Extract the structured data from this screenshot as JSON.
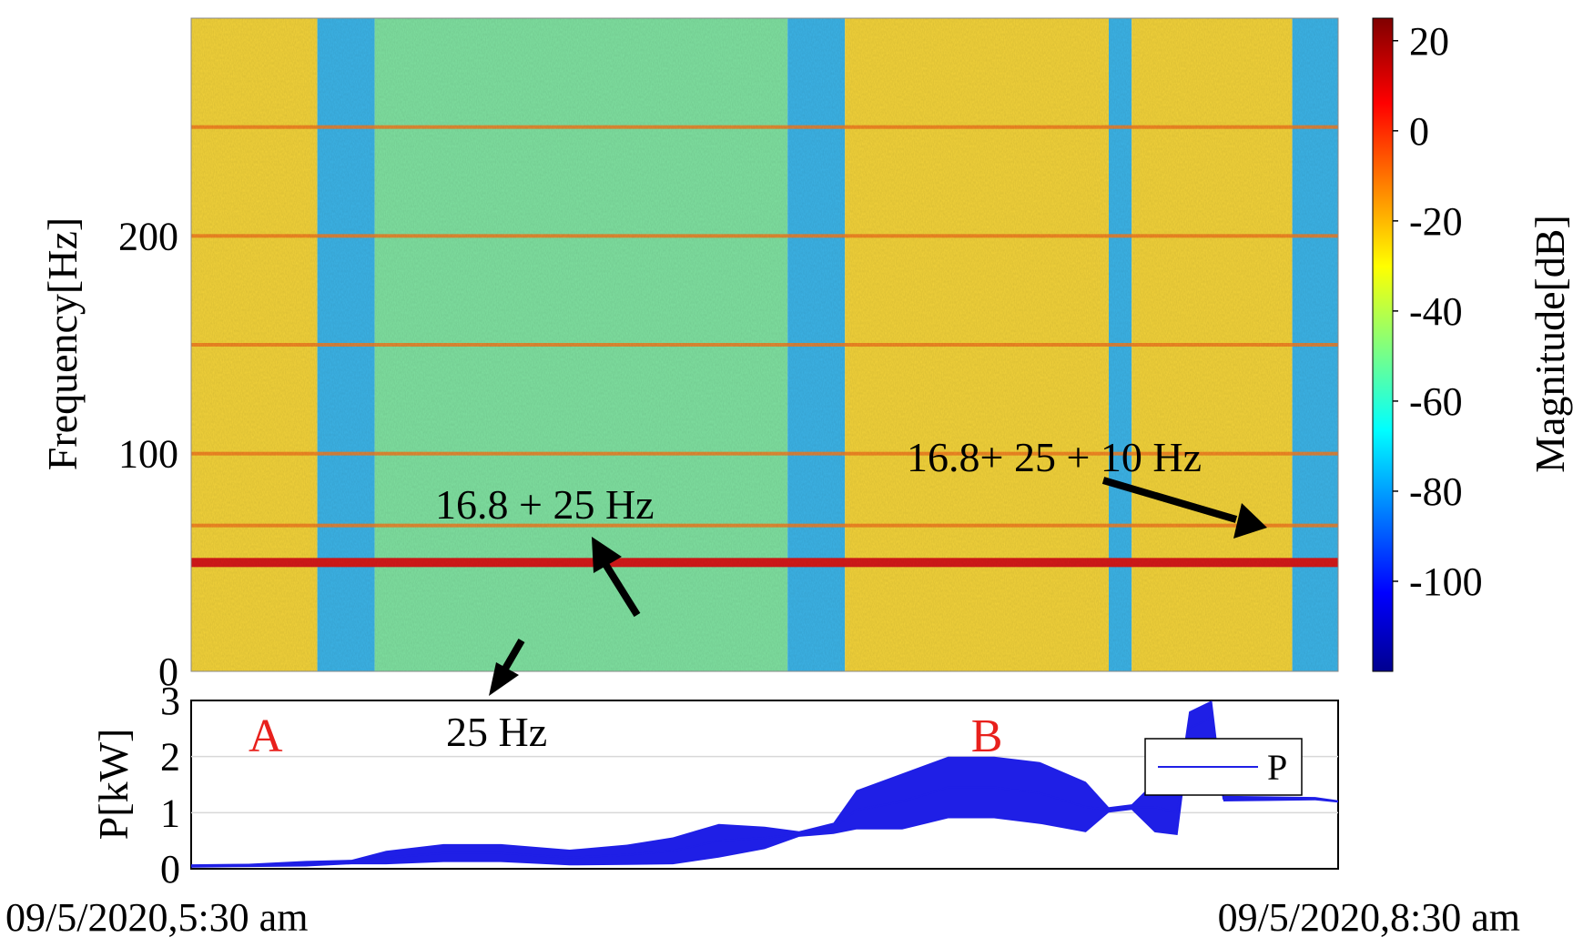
{
  "chart_data": [
    {
      "type": "heatmap",
      "title": "",
      "xlabel": "",
      "ylabel": "Frequency[Hz]",
      "ylim": [
        0,
        300
      ],
      "yticks": [
        0,
        100,
        200
      ],
      "ytick_labels": [
        "0",
        "100",
        "200"
      ],
      "colorbar": {
        "label": "Magnitude[dB]",
        "range": [
          -120,
          25
        ],
        "ticks": [
          20,
          0,
          -20,
          -40,
          -60,
          -80,
          -100
        ],
        "tick_labels": [
          "20",
          "0",
          "-20",
          "-40",
          "-60",
          "-80",
          "-100"
        ]
      },
      "x_ticks_left": "09/5/2020,5:30 am",
      "x_ticks_right": "09/5/2020,8:30 am",
      "dominant_lines_hz": [
        50,
        67,
        100,
        150,
        200,
        250
      ],
      "annotations": [
        {
          "text": "16.8 + 25 Hz",
          "freq_hz": 67
        },
        {
          "text": "16.8+ 25 + 10 Hz",
          "freq_hz": 67
        },
        {
          "text": "25 Hz",
          "freq_hz": 25
        }
      ],
      "segments": [
        {
          "t_start": 0.0,
          "t_end": 0.11,
          "level": "high"
        },
        {
          "t_start": 0.11,
          "t_end": 0.16,
          "level": "low"
        },
        {
          "t_start": 0.16,
          "t_end": 0.52,
          "level": "mid"
        },
        {
          "t_start": 0.52,
          "t_end": 0.57,
          "level": "low"
        },
        {
          "t_start": 0.57,
          "t_end": 0.8,
          "level": "high"
        },
        {
          "t_start": 0.8,
          "t_end": 0.82,
          "level": "low"
        },
        {
          "t_start": 0.82,
          "t_end": 0.96,
          "level": "high"
        },
        {
          "t_start": 0.96,
          "t_end": 1.0,
          "level": "low"
        }
      ]
    },
    {
      "type": "line",
      "title": "",
      "xlabel": "",
      "ylabel": "P[kW]",
      "ylim": [
        0,
        3
      ],
      "yticks": [
        0,
        1,
        2,
        3
      ],
      "ytick_labels": [
        "0",
        "1",
        "2",
        "3"
      ],
      "legend": {
        "position": "top-right",
        "entries": [
          "P"
        ]
      },
      "region_labels": [
        {
          "text": "A",
          "t": 0.05
        },
        {
          "text": "B",
          "t": 0.68
        }
      ],
      "series": [
        {
          "name": "P",
          "color": "#1f1fe6",
          "points": [
            {
              "t": 0.0,
              "y": 0.05,
              "spread": 0.03
            },
            {
              "t": 0.05,
              "y": 0.06,
              "spread": 0.03
            },
            {
              "t": 0.1,
              "y": 0.09,
              "spread": 0.05
            },
            {
              "t": 0.14,
              "y": 0.12,
              "spread": 0.04
            },
            {
              "t": 0.17,
              "y": 0.2,
              "spread": 0.12
            },
            {
              "t": 0.22,
              "y": 0.28,
              "spread": 0.16
            },
            {
              "t": 0.27,
              "y": 0.28,
              "spread": 0.16
            },
            {
              "t": 0.33,
              "y": 0.2,
              "spread": 0.14
            },
            {
              "t": 0.38,
              "y": 0.25,
              "spread": 0.18
            },
            {
              "t": 0.42,
              "y": 0.32,
              "spread": 0.24
            },
            {
              "t": 0.46,
              "y": 0.5,
              "spread": 0.3
            },
            {
              "t": 0.5,
              "y": 0.55,
              "spread": 0.2
            },
            {
              "t": 0.53,
              "y": 0.62,
              "spread": 0.05
            },
            {
              "t": 0.56,
              "y": 0.72,
              "spread": 0.1
            },
            {
              "t": 0.58,
              "y": 1.05,
              "spread": 0.35
            },
            {
              "t": 0.62,
              "y": 1.2,
              "spread": 0.5
            },
            {
              "t": 0.66,
              "y": 1.45,
              "spread": 0.55
            },
            {
              "t": 0.7,
              "y": 1.45,
              "spread": 0.55
            },
            {
              "t": 0.74,
              "y": 1.35,
              "spread": 0.55
            },
            {
              "t": 0.78,
              "y": 1.1,
              "spread": 0.45
            },
            {
              "t": 0.8,
              "y": 1.05,
              "spread": 0.05
            },
            {
              "t": 0.82,
              "y": 1.1,
              "spread": 0.05
            },
            {
              "t": 0.84,
              "y": 1.1,
              "spread": 0.45
            },
            {
              "t": 0.86,
              "y": 1.0,
              "spread": 0.4
            },
            {
              "t": 0.87,
              "y": 2.5,
              "spread": 0.3
            },
            {
              "t": 0.89,
              "y": 2.7,
              "spread": 0.4
            },
            {
              "t": 0.9,
              "y": 1.25,
              "spread": 0.05
            },
            {
              "t": 0.98,
              "y": 1.25,
              "spread": 0.03
            },
            {
              "t": 1.0,
              "y": 1.2,
              "spread": 0.02
            }
          ]
        }
      ]
    }
  ]
}
